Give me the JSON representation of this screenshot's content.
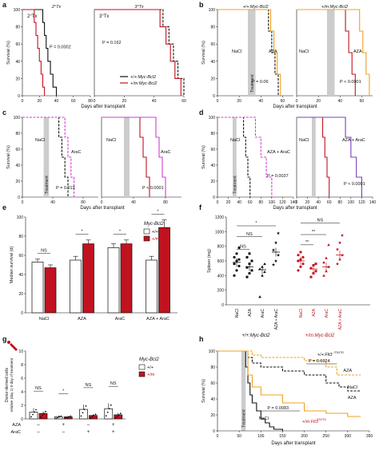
{
  "colors": {
    "wt": "#111111",
    "mut": "#c1121f",
    "orange": "#f0a020",
    "magenta": "#d23cd2",
    "purple": "#7b3fb8",
    "gray": "#cccccc"
  },
  "texts": {
    "survival": "Survival (%)",
    "days": "Days after transplant",
    "treatment": "Treatment",
    "median": "Median survival (d)",
    "spleen": "Spleen (mg)",
    "donor": "Donor-derived cells relative (day 1) 0 day of treatment",
    "mycbcl2": "Myc-Bcl2",
    "wt_lbl": "+/+",
    "mut_lbl": "+/m",
    "wt_myc": "+/+:Myc-Bcl2",
    "mut_myc": "+/m:Myc-Bcl2",
    "wt_flt": "+/+:Flt3",
    "mut_flt": "+/m:Flt3",
    "flt_sup": "ITD/ITD",
    "aza": "AZA",
    "arac": "AraC",
    "nacl": "NaCl",
    "aza_arac": "AZA + AraC",
    "ns": "NS",
    "star": "*",
    "dstar": "**",
    "plus": "+",
    "minus": "–"
  },
  "panel_letters": [
    "a",
    "b",
    "c",
    "d",
    "e",
    "f",
    "g",
    "h"
  ],
  "chart_data": [
    {
      "id": "a",
      "type": "line",
      "ylabel": "Survival (%)",
      "xlabel": "Days after transplant",
      "x_ticks": [
        0,
        20,
        40,
        60,
        80
      ],
      "y_ticks": [
        0,
        20,
        40,
        60,
        80,
        100
      ],
      "ylim": [
        0,
        100
      ],
      "subpanels": [
        {
          "title": "2°Tx",
          "pvalue": "P = 0.0002",
          "series": [
            {
              "name": "+/+:Myc-Bcl2",
              "color": "wt",
              "dashed": false,
              "x": [
                0,
                20,
                24,
                26,
                28,
                30,
                33,
                36,
                40
              ],
              "y": [
                100,
                100,
                85,
                70,
                55,
                40,
                25,
                10,
                0
              ]
            },
            {
              "name": "+/m:Myc-Bcl2",
              "color": "mut",
              "dashed": false,
              "x": [
                0,
                12,
                14,
                16,
                18,
                20,
                22,
                24,
                26
              ],
              "y": [
                100,
                100,
                85,
                70,
                55,
                40,
                25,
                10,
                0
              ]
            }
          ]
        },
        {
          "title": "3°Tx",
          "pvalue": "P = 0.162",
          "series": [
            {
              "name": "+/+:Myc-Bcl2",
              "color": "wt",
              "dashed": true,
              "x": [
                0,
                42,
                46,
                50,
                53,
                56,
                60
              ],
              "y": [
                100,
                100,
                80,
                60,
                40,
                20,
                0
              ]
            },
            {
              "name": "+/m:Myc-Bcl2",
              "color": "mut",
              "dashed": false,
              "x": [
                0,
                40,
                44,
                48,
                51,
                54,
                58
              ],
              "y": [
                100,
                100,
                80,
                60,
                40,
                20,
                0
              ]
            }
          ]
        }
      ],
      "legend": [
        "+/+:Myc-Bcl2",
        "+/m:Myc-Bcl2"
      ]
    },
    {
      "id": "b",
      "type": "line",
      "ylabel": "Survival (%)",
      "xlabel": "Days after transplant",
      "x_ticks": [
        0,
        20,
        40,
        60
      ],
      "ylim": [
        0,
        100
      ],
      "subpanels": [
        {
          "title": "+/+:Myc-Bcl2",
          "pvalue": "P = 0.06",
          "series": [
            {
              "name": "NaCl",
              "color": "wt",
              "dashed": true,
              "x": [
                0,
                44,
                47,
                50,
                53,
                56
              ],
              "y": [
                100,
                100,
                75,
                50,
                25,
                0
              ]
            },
            {
              "name": "AZA",
              "color": "orange",
              "dashed": false,
              "x": [
                0,
                46,
                49,
                52,
                55,
                58
              ],
              "y": [
                100,
                100,
                75,
                50,
                25,
                0
              ]
            }
          ]
        },
        {
          "title": "+/m:Myc-Bcl2",
          "pvalue": "P < 0.0001",
          "series": [
            {
              "name": "NaCl",
              "color": "mut",
              "dashed": false,
              "x": [
                0,
                42,
                45,
                48,
                51,
                54
              ],
              "y": [
                100,
                100,
                75,
                50,
                25,
                0
              ]
            },
            {
              "name": "AZA",
              "color": "orange",
              "dashed": false,
              "x": [
                0,
                55,
                58,
                61,
                64,
                67
              ],
              "y": [
                100,
                100,
                75,
                50,
                25,
                0
              ]
            }
          ]
        }
      ]
    },
    {
      "id": "c",
      "type": "line",
      "ylabel": "Survival (%)",
      "xlabel": "Days after transplant",
      "x_ticks": [
        0,
        40,
        80
      ],
      "ylim": [
        0,
        100
      ],
      "subpanels": [
        {
          "pvalue": "P = 0.013",
          "series": [
            {
              "name": "NaCl",
              "color": "wt",
              "dashed": true,
              "x": [
                0,
                44,
                48,
                52,
                56,
                60
              ],
              "y": [
                100,
                100,
                75,
                50,
                25,
                0
              ]
            },
            {
              "name": "AraC",
              "color": "magenta",
              "dashed": true,
              "x": [
                0,
                52,
                56,
                60,
                64,
                68
              ],
              "y": [
                100,
                100,
                75,
                50,
                25,
                0
              ]
            }
          ]
        },
        {
          "pvalue": "P < 0.0001",
          "series": [
            {
              "name": "NaCl",
              "color": "mut",
              "dashed": false,
              "x": [
                0,
                44,
                48,
                52,
                56,
                60
              ],
              "y": [
                100,
                100,
                75,
                50,
                25,
                0
              ]
            },
            {
              "name": "AraC",
              "color": "magenta",
              "dashed": false,
              "x": [
                0,
                64,
                68,
                72,
                76,
                80
              ],
              "y": [
                100,
                100,
                75,
                50,
                25,
                0
              ]
            }
          ]
        }
      ]
    },
    {
      "id": "d",
      "type": "line",
      "ylabel": "Survival (%)",
      "xlabel": "Days after transplant",
      "x_ticks": [
        0,
        20,
        40,
        60,
        80,
        100,
        120,
        140
      ],
      "ylim": [
        0,
        100
      ],
      "subpanels": [
        {
          "pvalue": "P = 0.0037",
          "series": [
            {
              "name": "NaCl",
              "color": "wt",
              "dashed": true,
              "x": [
                0,
                44,
                48,
                52,
                56,
                60
              ],
              "y": [
                100,
                100,
                75,
                50,
                25,
                0
              ]
            },
            {
              "name": "AZA + AraC",
              "color": "magenta",
              "dashed": true,
              "x": [
                0,
                60,
                70,
                80,
                90,
                100
              ],
              "y": [
                100,
                100,
                75,
                50,
                25,
                0
              ]
            }
          ]
        },
        {
          "pvalue": "P < 0.0001",
          "series": [
            {
              "name": "NaCl",
              "color": "mut",
              "dashed": false,
              "x": [
                0,
                44,
                48,
                52,
                56,
                60
              ],
              "y": [
                100,
                100,
                75,
                50,
                25,
                0
              ]
            },
            {
              "name": "AZA + AraC",
              "color": "purple",
              "dashed": false,
              "x": [
                0,
                80,
                90,
                100,
                110,
                120
              ],
              "y": [
                100,
                100,
                75,
                50,
                25,
                0
              ]
            }
          ]
        }
      ]
    },
    {
      "id": "e",
      "type": "bar",
      "ylabel": "Median survival (d)",
      "ylim": [
        0,
        100
      ],
      "y_ticks": [
        0,
        20,
        40,
        60,
        80,
        100
      ],
      "categories": [
        "NaCl",
        "AZA",
        "AraC",
        "AZA + AraC"
      ],
      "series": [
        {
          "name": "+/+",
          "color": "white",
          "values": [
            53,
            55,
            68,
            55
          ],
          "err": [
            3,
            4,
            4,
            4
          ]
        },
        {
          "name": "+/m",
          "color": "mut",
          "values": [
            47,
            72,
            72,
            89
          ],
          "err": [
            3,
            4,
            4,
            8
          ]
        }
      ],
      "sig": [
        "NS",
        "*",
        "*",
        "*"
      ]
    },
    {
      "id": "f",
      "type": "scatter",
      "ylabel": "Spleen (mg)",
      "ylim": [
        0,
        1200
      ],
      "y_ticks": [
        0,
        200,
        400,
        600,
        800,
        1000,
        1200
      ],
      "categories": [
        "NaCl",
        "AZA",
        "AraC",
        "AZA + AraC",
        "NaCl",
        "AZA",
        "AraC",
        "AZA + AraC"
      ],
      "group_labels": [
        "+/+:Myc-Bcl2",
        "+/m:Myc-Bcl2"
      ],
      "means": [
        580,
        520,
        480,
        720,
        600,
        490,
        520,
        680
      ],
      "points": [
        [
          400,
          470,
          530,
          560,
          600,
          620,
          650,
          700,
          780
        ],
        [
          380,
          430,
          470,
          510,
          560,
          600,
          650,
          700
        ],
        [
          110,
          400,
          450,
          490,
          520,
          560
        ],
        [
          550,
          600,
          680,
          750,
          850,
          980
        ],
        [
          470,
          520,
          560,
          600,
          620,
          650,
          680,
          720
        ],
        [
          380,
          430,
          460,
          500,
          540,
          560
        ],
        [
          400,
          460,
          520,
          580,
          640,
          820
        ],
        [
          560,
          620,
          680,
          760,
          850,
          950
        ]
      ],
      "sig": [
        "NS",
        "NS",
        "*",
        "NS",
        "**",
        "**"
      ]
    },
    {
      "id": "g",
      "type": "bar",
      "ylabel": "Donor-derived cells relative (day 1) 0 day of treatment",
      "ylim": [
        0,
        10
      ],
      "y_ticks": [
        0,
        2,
        4,
        6,
        8,
        10
      ],
      "aza_row": [
        "–",
        "+",
        "–",
        "+"
      ],
      "arac_row": [
        "–",
        "–",
        "+",
        "+"
      ],
      "series": [
        {
          "name": "+/+",
          "values": [
            1.0,
            0.3,
            1.4,
            1.5
          ],
          "err": [
            0.6,
            0.2,
            0.7,
            0.8
          ]
        },
        {
          "name": "+/m",
          "values": [
            0.8,
            0.3,
            0.5,
            0.6
          ],
          "err": [
            0.3,
            0.1,
            0.2,
            0.3
          ]
        }
      ],
      "sig": [
        "NS",
        "*",
        "NS",
        "NS"
      ]
    },
    {
      "id": "h",
      "type": "line",
      "ylabel": "Survival (%)",
      "xlabel": "Days after transplant",
      "x_ticks": [
        0,
        50,
        100,
        150,
        200,
        250,
        300,
        350
      ],
      "ylim": [
        0,
        100
      ],
      "pvalues": [
        "P = 0.6024",
        "P = 0.0083"
      ],
      "series": [
        {
          "name": "NaCl",
          "group": "wt",
          "color": "wt",
          "dashed": true,
          "x": [
            0,
            60,
            70,
            80,
            100,
            150,
            200,
            250,
            280,
            300,
            330
          ],
          "y": [
            100,
            100,
            92,
            85,
            80,
            75,
            70,
            60,
            55,
            50,
            50
          ]
        },
        {
          "name": "AZA",
          "group": "wt",
          "color": "orange",
          "dashed": true,
          "x": [
            0,
            60,
            80,
            100,
            200,
            250,
            275,
            330
          ],
          "y": [
            100,
            100,
            95,
            92,
            88,
            80,
            70,
            70
          ]
        },
        {
          "name": "NaCl",
          "group": "mut",
          "color": "wt",
          "dashed": false,
          "x": [
            0,
            60,
            65,
            70,
            75,
            80,
            90,
            100,
            110,
            120,
            130,
            150
          ],
          "y": [
            100,
            100,
            80,
            60,
            45,
            35,
            25,
            15,
            10,
            5,
            2,
            0
          ]
        },
        {
          "name": "AZA",
          "group": "mut",
          "color": "orange",
          "dashed": false,
          "x": [
            0,
            60,
            70,
            80,
            100,
            150,
            200,
            250,
            300,
            330
          ],
          "y": [
            100,
            100,
            70,
            55,
            45,
            35,
            25,
            22,
            18,
            18
          ]
        }
      ]
    }
  ]
}
